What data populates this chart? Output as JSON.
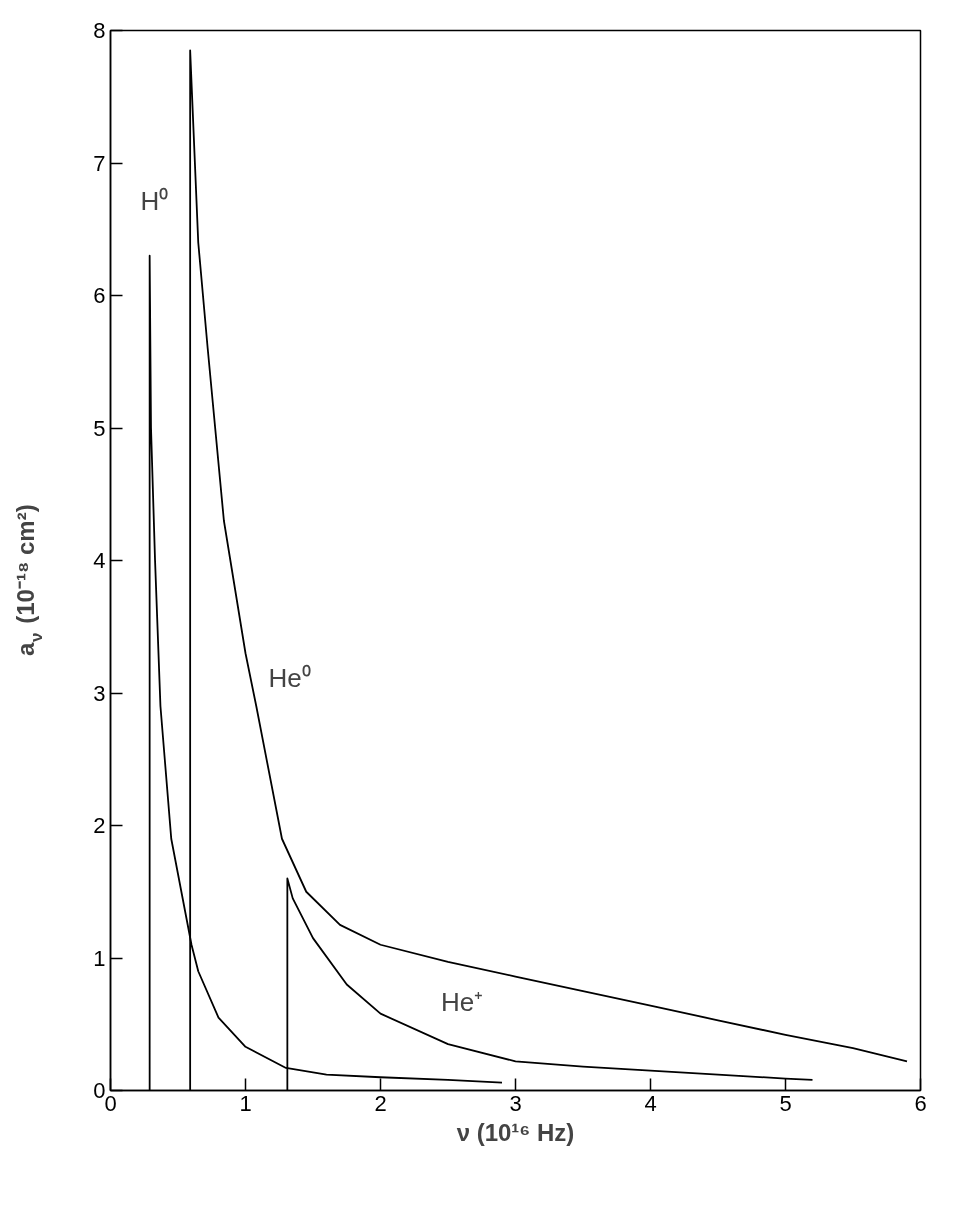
{
  "chart_data": {
    "type": "line",
    "xlabel": "ν (10¹⁶ Hz)",
    "ylabel": "a$_{ν}$ (10⁻¹⁸ cm²)",
    "xlim": [
      0,
      6
    ],
    "ylim": [
      0,
      8
    ],
    "xticks": [
      0,
      1,
      2,
      3,
      4,
      5,
      6
    ],
    "yticks": [
      0,
      1,
      2,
      3,
      4,
      5,
      6,
      7,
      8
    ],
    "grid": false,
    "marker": "none",
    "line_style": "solid",
    "series": [
      {
        "color": "#000000",
        "x": [
          0.29,
          0.29,
          0.3,
          0.33,
          0.37,
          0.45,
          0.6,
          0.65,
          0.8,
          1.0,
          1.3,
          1.6,
          2.0,
          2.5,
          2.9
        ],
        "values": [
          0,
          6.3,
          5.0,
          4.0,
          2.9,
          1.9,
          1.1,
          0.9,
          0.55,
          0.33,
          0.17,
          0.12,
          0.1,
          0.08,
          0.06
        ]
      },
      {
        "color": "#000000",
        "x": [
          0.59,
          0.59,
          0.65,
          0.72,
          0.84,
          1.0,
          1.08,
          1.27,
          1.45,
          1.7,
          2.0,
          2.5,
          3.0,
          3.5,
          4.0,
          4.5,
          5.0,
          5.5,
          5.9
        ],
        "values": [
          0,
          7.85,
          6.4,
          5.6,
          4.3,
          3.3,
          2.9,
          1.9,
          1.5,
          1.25,
          1.1,
          0.97,
          0.86,
          0.75,
          0.64,
          0.53,
          0.42,
          0.32,
          0.22
        ]
      },
      {
        "color": "#000000",
        "x": [
          1.31,
          1.31,
          1.35,
          1.5,
          1.75,
          2.0,
          2.5,
          3.0,
          3.5,
          4.0,
          4.5,
          5.0,
          5.2
        ],
        "values": [
          0,
          1.6,
          1.45,
          1.15,
          0.8,
          0.58,
          0.35,
          0.22,
          0.18,
          0.15,
          0.12,
          0.09,
          0.08
        ]
      }
    ],
    "annotations": [
      "H⁰",
      "He⁰",
      "He⁺"
    ]
  }
}
